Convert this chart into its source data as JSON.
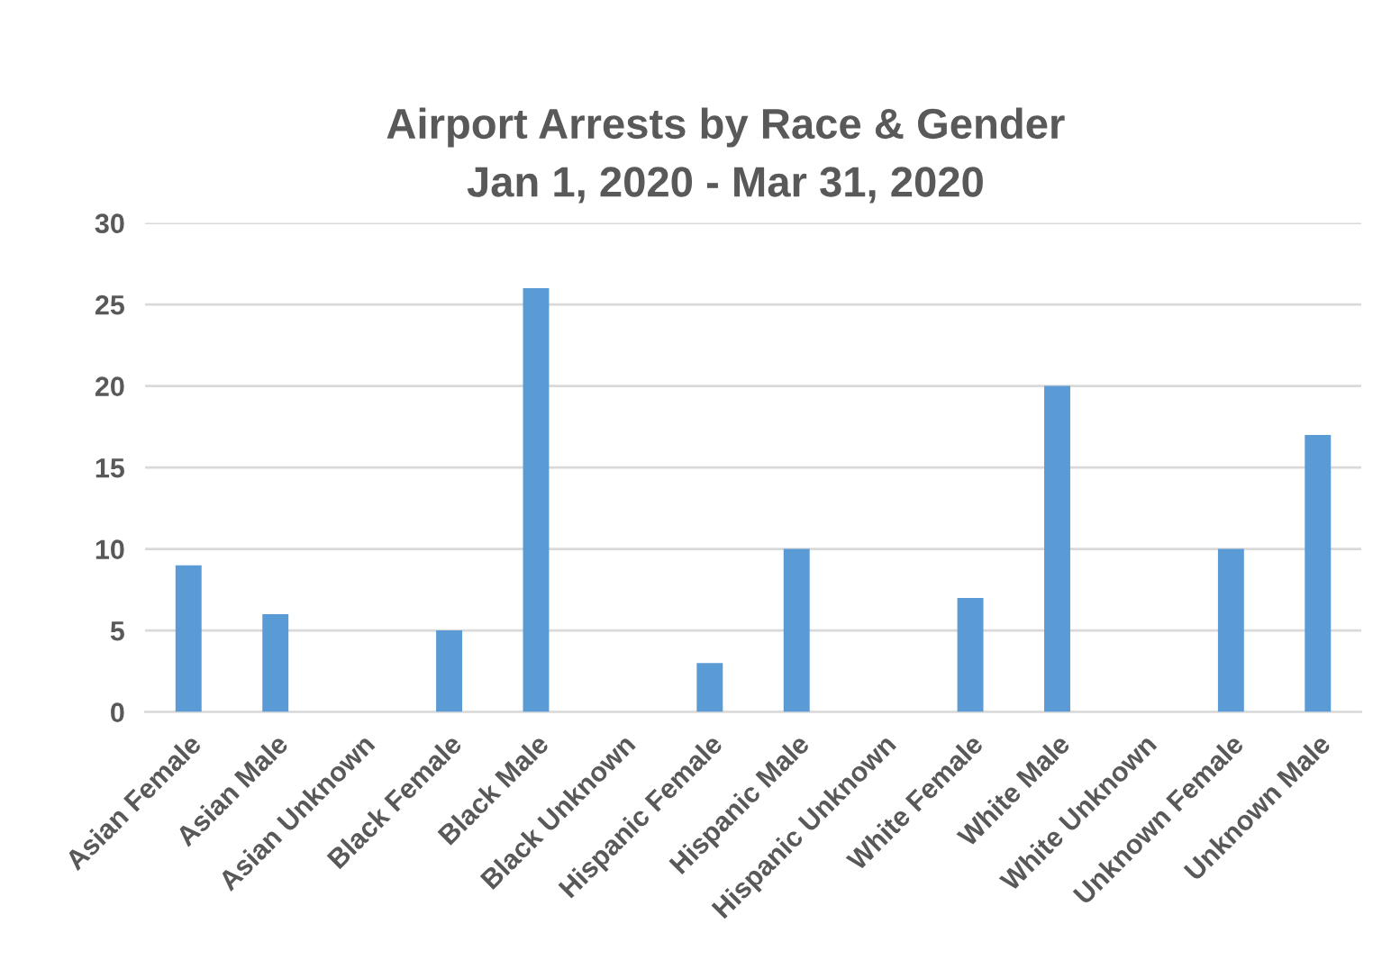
{
  "chart_data": {
    "type": "bar",
    "title": "Airport Arrests by Race & Gender\nJan 1, 2020 - Mar 31, 2020",
    "categories": [
      "Asian Female",
      "Asian Male",
      "Asian Unknown",
      "Black Female",
      "Black Male",
      "Black Unknown",
      "Hispanic Female",
      "Hispanic Male",
      "Hispanic Unknown",
      "White Female",
      "White Male",
      "White Unknown",
      "Unknown Female",
      "Unknown Male"
    ],
    "values": [
      9,
      6,
      0,
      5,
      26,
      0,
      3,
      10,
      0,
      7,
      20,
      0,
      10,
      17
    ],
    "color": "#5b9bd5",
    "ylim": [
      0,
      30
    ],
    "yticks": [
      0,
      5,
      10,
      15,
      20,
      25,
      30
    ],
    "grid": "y"
  }
}
